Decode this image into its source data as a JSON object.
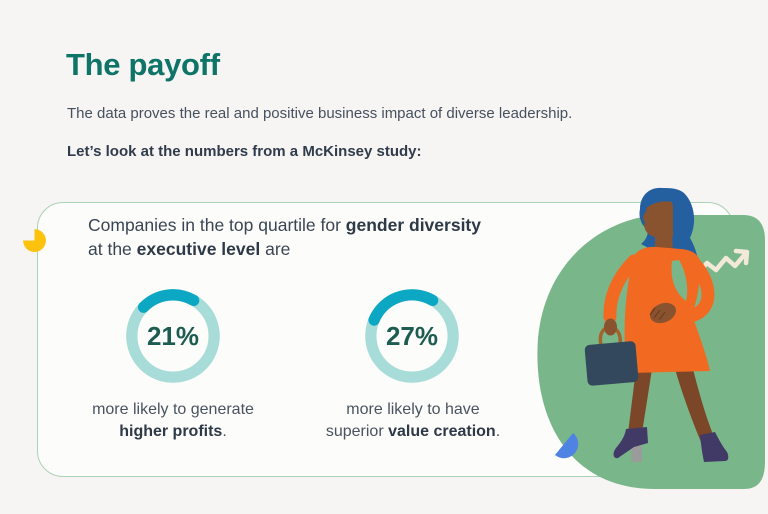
{
  "page": {
    "background": "#f6f5f3"
  },
  "header": {
    "title": "The payoff",
    "subtitle": "The data proves the real and positive business impact of diverse leadership.",
    "lead_in": "Let’s look at the numbers from a McKinsey study:"
  },
  "card": {
    "intro": {
      "line1_pre": "Companies in the top quartile for ",
      "line1_bold": "gender diversity",
      "line2_pre": "at the ",
      "line2_bold": "executive level",
      "line2_post": " are"
    }
  },
  "chart_data": {
    "type": "donut",
    "source_note": "McKinsey study",
    "ring_color": "#a8dcd8",
    "arc_color": "#0ba7c3",
    "value_text_color": "#1d5c50",
    "charts": [
      {
        "value": 21,
        "label": "21%",
        "caption_line1": "more likely to generate",
        "caption_line2_pre": "",
        "caption_line2_bold": "higher profits",
        "caption_line2_post": ".",
        "caption_full": "more likely to generate higher profits."
      },
      {
        "value": 27,
        "label": "27%",
        "caption_line1": "more likely to have",
        "caption_line2_pre": "superior ",
        "caption_line2_bold": "value creation",
        "caption_line2_post": ".",
        "caption_full": "more likely to have superior value creation."
      }
    ]
  },
  "illustration": {
    "name": "businesswoman-with-briefcase",
    "blob_color": "#79b78b",
    "arrow_color": "#f2e9d9",
    "dress_color": "#f26a21",
    "hair_color": "#2460a0",
    "skin_color": "#8a532f",
    "briefcase_color": "#34485d",
    "briefcase_handle_color": "#a5632c",
    "boots_color": "#413966",
    "heel_color": "#9b9b9b",
    "accent_yellow": "#fcc20e",
    "accent_blue": "#4f83e3"
  },
  "colors": {
    "title": "#0e7468",
    "body_text": "#46505f",
    "bold_text": "#2e3947",
    "card_border": "#abd1b6",
    "card_background": "#fcfcfa"
  }
}
